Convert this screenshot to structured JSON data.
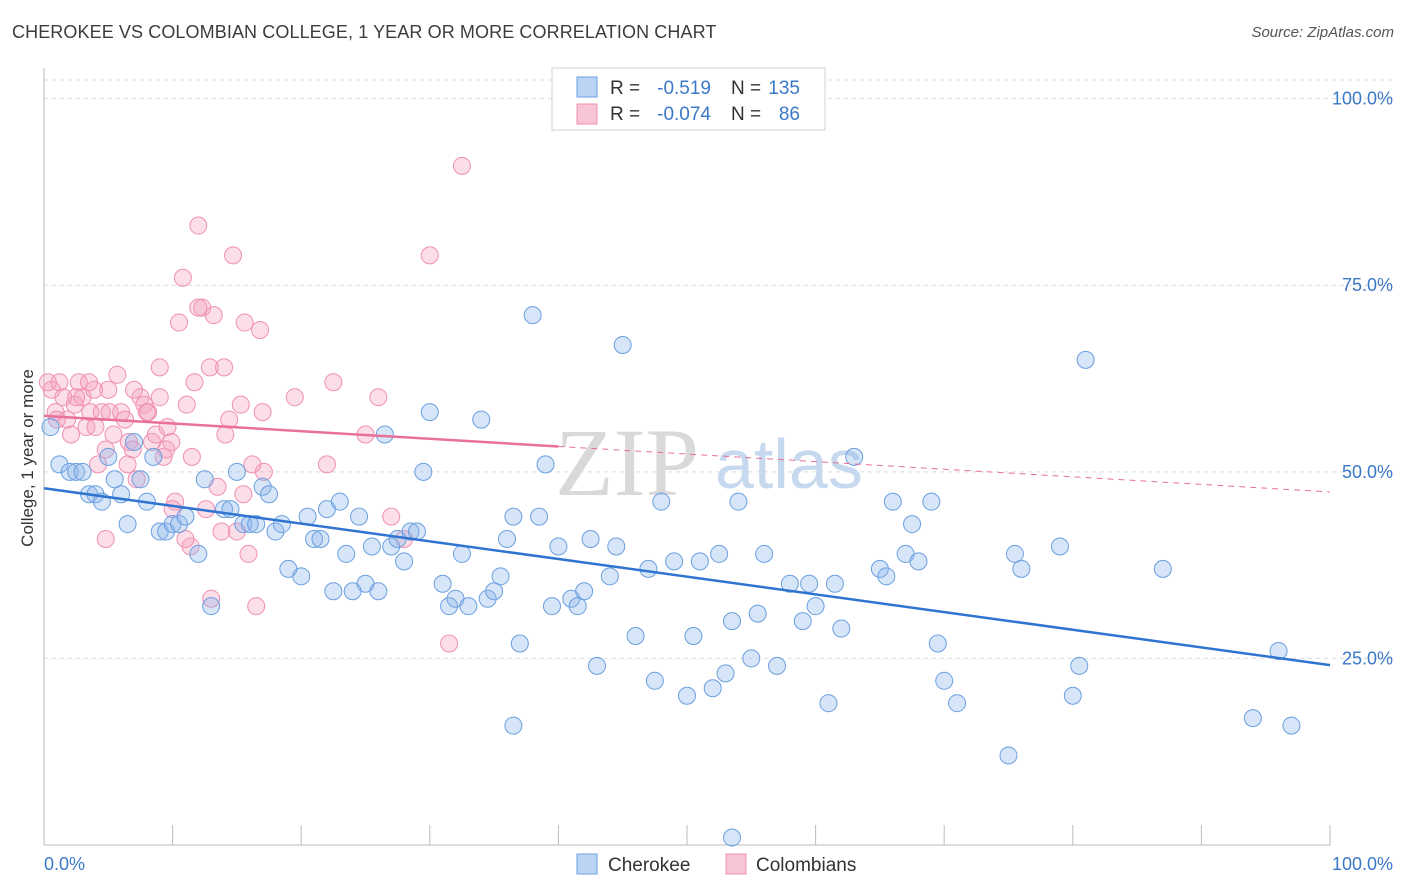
{
  "title": "CHEROKEE VS COLOMBIAN COLLEGE, 1 YEAR OR MORE CORRELATION CHART",
  "source": "Source: ZipAtlas.com",
  "watermark": {
    "zip": "ZIP",
    "atlas": "atlas"
  },
  "colors": {
    "cherokee": "#6a9fe0",
    "cherokee_line": "#2f74d0",
    "colombians": "#f090b0",
    "colombians_line": "#e8709a",
    "axis_text": "#3a78c8"
  },
  "legend": {
    "rows": [
      {
        "r_label": "R =",
        "r_value": "-0.519",
        "n_label": "N =",
        "n_value": "135"
      },
      {
        "r_label": "R =",
        "r_value": "-0.074",
        "n_label": "N =",
        "n_value": "86"
      }
    ]
  },
  "bottom_legend": [
    "Cherokee",
    "Colombians"
  ],
  "chart_data": {
    "type": "scatter",
    "xlabel": "",
    "ylabel": "College, 1 year or more",
    "xlim": [
      0,
      100
    ],
    "ylim": [
      0,
      100
    ],
    "x_tick_labels": [
      "0.0%",
      "100.0%"
    ],
    "y_ticks": [
      25,
      50,
      75,
      100
    ],
    "y_tick_labels": [
      "25.0%",
      "50.0%",
      "75.0%",
      "100.0%"
    ],
    "grid": true,
    "legend_position": "top-center",
    "series": [
      {
        "name": "Cherokee",
        "r": -0.519,
        "n": 135,
        "trend": {
          "x0": 0,
          "y0": 47.8,
          "x1": 100,
          "y1": 24.1
        },
        "points": [
          [
            0.5,
            56
          ],
          [
            1.2,
            51
          ],
          [
            2,
            50
          ],
          [
            2.5,
            50
          ],
          [
            3,
            50
          ],
          [
            3.5,
            47
          ],
          [
            4,
            47
          ],
          [
            4.5,
            46
          ],
          [
            5,
            52
          ],
          [
            5.5,
            49
          ],
          [
            6,
            47
          ],
          [
            6.5,
            43
          ],
          [
            7,
            54
          ],
          [
            7.5,
            49
          ],
          [
            8,
            46
          ],
          [
            8.5,
            52
          ],
          [
            9,
            42
          ],
          [
            9.5,
            42
          ],
          [
            10,
            43
          ],
          [
            10.5,
            43
          ],
          [
            11,
            44
          ],
          [
            12,
            39
          ],
          [
            12.5,
            49
          ],
          [
            13,
            32
          ],
          [
            14,
            45
          ],
          [
            14.5,
            45
          ],
          [
            15,
            50
          ],
          [
            15.5,
            43
          ],
          [
            16,
            43
          ],
          [
            16.5,
            43
          ],
          [
            17,
            48
          ],
          [
            17.5,
            47
          ],
          [
            18,
            42
          ],
          [
            18.5,
            43
          ],
          [
            19,
            37
          ],
          [
            20,
            36
          ],
          [
            20.5,
            44
          ],
          [
            21,
            41
          ],
          [
            21.5,
            41
          ],
          [
            22,
            45
          ],
          [
            22.5,
            34
          ],
          [
            23,
            46
          ],
          [
            23.5,
            39
          ],
          [
            24,
            34
          ],
          [
            24.5,
            44
          ],
          [
            25,
            35
          ],
          [
            25.5,
            40
          ],
          [
            26,
            34
          ],
          [
            26.5,
            55
          ],
          [
            27,
            40
          ],
          [
            27.5,
            41
          ],
          [
            28,
            38
          ],
          [
            28.5,
            42
          ],
          [
            29,
            42
          ],
          [
            29.5,
            50
          ],
          [
            30,
            58
          ],
          [
            31,
            35
          ],
          [
            31.5,
            32
          ],
          [
            32,
            33
          ],
          [
            32.5,
            39
          ],
          [
            33,
            32
          ],
          [
            34,
            57
          ],
          [
            34.5,
            33
          ],
          [
            35,
            34
          ],
          [
            35.5,
            36
          ],
          [
            36,
            41
          ],
          [
            36.5,
            44
          ],
          [
            37,
            27
          ],
          [
            38,
            71
          ],
          [
            38.5,
            44
          ],
          [
            39,
            51
          ],
          [
            39.5,
            32
          ],
          [
            40,
            40
          ],
          [
            41,
            33
          ],
          [
            41.5,
            32
          ],
          [
            42,
            34
          ],
          [
            42.5,
            41
          ],
          [
            43,
            24
          ],
          [
            44,
            36
          ],
          [
            44.5,
            40
          ],
          [
            45,
            67
          ],
          [
            46,
            28
          ],
          [
            47,
            37
          ],
          [
            47.5,
            22
          ],
          [
            48,
            46
          ],
          [
            49,
            38
          ],
          [
            50,
            20
          ],
          [
            50.5,
            28
          ],
          [
            51,
            38
          ],
          [
            52,
            21
          ],
          [
            52.5,
            39
          ],
          [
            53,
            23
          ],
          [
            53.5,
            30
          ],
          [
            54,
            46
          ],
          [
            55,
            25
          ],
          [
            55.5,
            31
          ],
          [
            56,
            39
          ],
          [
            57,
            24
          ],
          [
            58,
            35
          ],
          [
            59,
            30
          ],
          [
            59.5,
            35
          ],
          [
            60,
            32
          ],
          [
            61,
            19
          ],
          [
            61.5,
            35
          ],
          [
            62,
            29
          ],
          [
            63,
            52
          ],
          [
            65,
            37
          ],
          [
            65.5,
            36
          ],
          [
            66,
            46
          ],
          [
            67,
            39
          ],
          [
            67.5,
            43
          ],
          [
            68,
            38
          ],
          [
            69,
            46
          ],
          [
            69.5,
            27
          ],
          [
            70,
            22
          ],
          [
            71,
            19
          ],
          [
            75,
            12
          ],
          [
            75.5,
            39
          ],
          [
            76,
            37
          ],
          [
            79,
            40
          ],
          [
            80,
            20
          ],
          [
            80.5,
            24
          ],
          [
            81,
            65
          ],
          [
            87,
            37
          ],
          [
            94,
            17
          ],
          [
            96,
            26
          ],
          [
            97,
            16
          ],
          [
            53.5,
            1
          ],
          [
            36.5,
            16
          ]
        ]
      },
      {
        "name": "Colombians",
        "r": -0.074,
        "n": 86,
        "trend": {
          "x0": 0,
          "y0": 57.5,
          "x1": 40,
          "y1": 53.4
        },
        "dashed_trend": {
          "x0": 40,
          "y0": 53.4,
          "x1": 100,
          "y1": 47.3
        },
        "points": [
          [
            0.3,
            62
          ],
          [
            0.6,
            61
          ],
          [
            0.9,
            58
          ],
          [
            1.2,
            62
          ],
          [
            1.5,
            60
          ],
          [
            1.8,
            57
          ],
          [
            2.1,
            55
          ],
          [
            2.4,
            59
          ],
          [
            2.7,
            62
          ],
          [
            3,
            60
          ],
          [
            3.3,
            56
          ],
          [
            3.6,
            58
          ],
          [
            3.9,
            61
          ],
          [
            4.2,
            51
          ],
          [
            4.5,
            58
          ],
          [
            4.8,
            53
          ],
          [
            5.1,
            58
          ],
          [
            5.4,
            55
          ],
          [
            5.7,
            63
          ],
          [
            6,
            58
          ],
          [
            6.3,
            57
          ],
          [
            6.6,
            54
          ],
          [
            6.9,
            53
          ],
          [
            7.2,
            49
          ],
          [
            7.5,
            60
          ],
          [
            7.8,
            59
          ],
          [
            8.1,
            58
          ],
          [
            8.4,
            54
          ],
          [
            8.7,
            55
          ],
          [
            9,
            64
          ],
          [
            9.3,
            52
          ],
          [
            9.6,
            56
          ],
          [
            9.9,
            54
          ],
          [
            10.2,
            46
          ],
          [
            10.5,
            70
          ],
          [
            10.8,
            76
          ],
          [
            11.1,
            59
          ],
          [
            11.4,
            40
          ],
          [
            11.7,
            62
          ],
          [
            12,
            83
          ],
          [
            12.3,
            72
          ],
          [
            12.6,
            45
          ],
          [
            12.9,
            64
          ],
          [
            13.2,
            71
          ],
          [
            13.5,
            48
          ],
          [
            13.8,
            42
          ],
          [
            14.1,
            55
          ],
          [
            14.4,
            57
          ],
          [
            14.7,
            79
          ],
          [
            15,
            42
          ],
          [
            15.3,
            59
          ],
          [
            15.6,
            70
          ],
          [
            15.9,
            39
          ],
          [
            16.2,
            51
          ],
          [
            16.5,
            32
          ],
          [
            16.8,
            69
          ],
          [
            17.1,
            50
          ],
          [
            4.8,
            41
          ],
          [
            9,
            60
          ],
          [
            11,
            41
          ],
          [
            12,
            72
          ],
          [
            14,
            64
          ],
          [
            17,
            58
          ],
          [
            19.5,
            60
          ],
          [
            22,
            51
          ],
          [
            22.5,
            62
          ],
          [
            25,
            55
          ],
          [
            26,
            60
          ],
          [
            27,
            44
          ],
          [
            28,
            41
          ],
          [
            30,
            79
          ],
          [
            31.5,
            27
          ],
          [
            32.5,
            91
          ],
          [
            5,
            61
          ],
          [
            2.5,
            60
          ],
          [
            1,
            57
          ],
          [
            6.5,
            51
          ],
          [
            7,
            61
          ],
          [
            8,
            58
          ],
          [
            10,
            45
          ],
          [
            13,
            33
          ],
          [
            3.5,
            62
          ],
          [
            4,
            56
          ],
          [
            9.5,
            53
          ],
          [
            11.5,
            52
          ],
          [
            15.5,
            47
          ]
        ]
      }
    ]
  }
}
